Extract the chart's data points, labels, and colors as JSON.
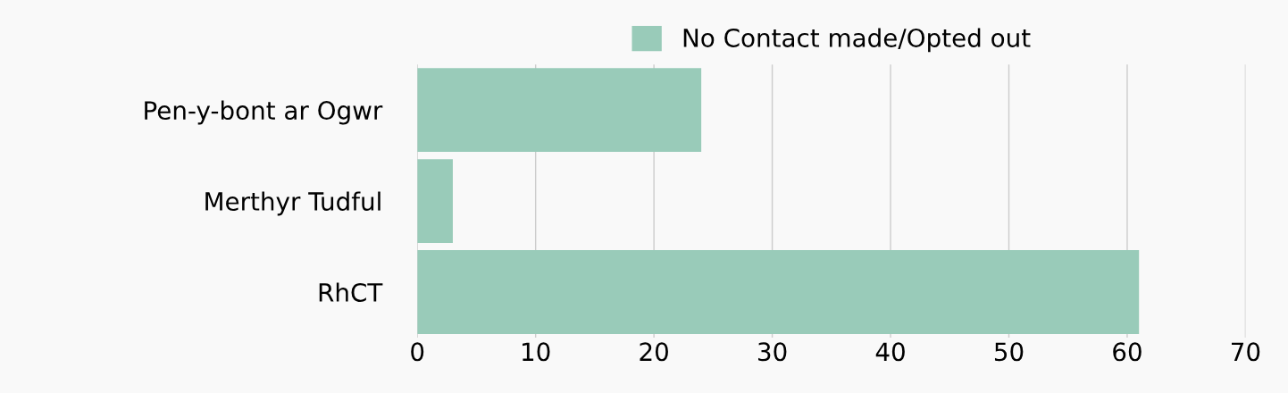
{
  "chart_data": {
    "type": "bar",
    "orientation": "horizontal",
    "categories": [
      "Pen-y-bont ar Ogwr",
      "Merthyr Tudful",
      "RhCT"
    ],
    "series": [
      {
        "name": "No Contact made/Opted out",
        "color": "#99cbb9",
        "values": [
          24,
          3,
          61
        ]
      }
    ],
    "xlim": [
      0,
      70
    ],
    "xticks": [
      0,
      10,
      20,
      30,
      40,
      50,
      60,
      70
    ],
    "grid": "x",
    "legend": "top"
  }
}
